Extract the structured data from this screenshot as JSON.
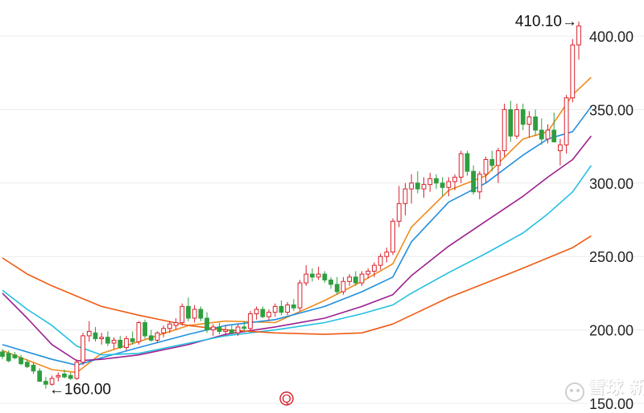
{
  "chart_data": {
    "type": "candlestick",
    "y_axis": {
      "min": 150,
      "max": 410,
      "ticks": [
        "400.00",
        "350.00",
        "300.00",
        "250.00",
        "200.00",
        "150.00"
      ],
      "position": "right"
    },
    "grid": true,
    "colors": {
      "up": "#d9202a",
      "down": "#2e9e3f",
      "ma_short": "#f08a1c",
      "ma_mid": "#1f8fe0",
      "ma_long": "#9c1f8f",
      "ma_xlong": "#22c0e0",
      "ma_xxlong": "#f05a14"
    },
    "candles": [
      {
        "o": 185,
        "h": 187,
        "l": 180,
        "c": 182
      },
      {
        "o": 184,
        "h": 186,
        "l": 178,
        "c": 179
      },
      {
        "o": 183,
        "h": 185,
        "l": 180,
        "c": 181
      },
      {
        "o": 181,
        "h": 183,
        "l": 176,
        "c": 177
      },
      {
        "o": 178,
        "h": 180,
        "l": 174,
        "c": 175
      },
      {
        "o": 176,
        "h": 178,
        "l": 170,
        "c": 172
      },
      {
        "o": 172,
        "h": 174,
        "l": 166,
        "c": 165
      },
      {
        "o": 165,
        "h": 168,
        "l": 160,
        "c": 163
      },
      {
        "o": 163,
        "h": 169,
        "l": 162,
        "c": 167
      },
      {
        "o": 168,
        "h": 171,
        "l": 165,
        "c": 169
      },
      {
        "o": 170,
        "h": 173,
        "l": 167,
        "c": 168
      },
      {
        "o": 169,
        "h": 171,
        "l": 166,
        "c": 167
      },
      {
        "o": 167,
        "h": 180,
        "l": 166,
        "c": 178
      },
      {
        "o": 178,
        "h": 198,
        "l": 176,
        "c": 196
      },
      {
        "o": 196,
        "h": 206,
        "l": 192,
        "c": 199
      },
      {
        "o": 198,
        "h": 202,
        "l": 192,
        "c": 194
      },
      {
        "o": 194,
        "h": 198,
        "l": 190,
        "c": 195
      },
      {
        "o": 195,
        "h": 199,
        "l": 189,
        "c": 191
      },
      {
        "o": 191,
        "h": 195,
        "l": 187,
        "c": 193
      },
      {
        "o": 193,
        "h": 196,
        "l": 187,
        "c": 188
      },
      {
        "o": 188,
        "h": 196,
        "l": 186,
        "c": 194
      },
      {
        "o": 194,
        "h": 199,
        "l": 190,
        "c": 192
      },
      {
        "o": 192,
        "h": 206,
        "l": 190,
        "c": 205
      },
      {
        "o": 205,
        "h": 207,
        "l": 194,
        "c": 196
      },
      {
        "o": 196,
        "h": 200,
        "l": 192,
        "c": 193
      },
      {
        "o": 193,
        "h": 199,
        "l": 191,
        "c": 198
      },
      {
        "o": 198,
        "h": 203,
        "l": 195,
        "c": 201
      },
      {
        "o": 201,
        "h": 206,
        "l": 198,
        "c": 204
      },
      {
        "o": 203,
        "h": 208,
        "l": 200,
        "c": 205
      },
      {
        "o": 205,
        "h": 218,
        "l": 203,
        "c": 216
      },
      {
        "o": 216,
        "h": 222,
        "l": 206,
        "c": 208
      },
      {
        "o": 208,
        "h": 217,
        "l": 205,
        "c": 214
      },
      {
        "o": 214,
        "h": 216,
        "l": 206,
        "c": 208
      },
      {
        "o": 208,
        "h": 212,
        "l": 198,
        "c": 200
      },
      {
        "o": 200,
        "h": 204,
        "l": 196,
        "c": 202
      },
      {
        "o": 202,
        "h": 205,
        "l": 197,
        "c": 199
      },
      {
        "o": 199,
        "h": 203,
        "l": 196,
        "c": 200
      },
      {
        "o": 200,
        "h": 203,
        "l": 197,
        "c": 198
      },
      {
        "o": 198,
        "h": 204,
        "l": 196,
        "c": 202
      },
      {
        "o": 202,
        "h": 206,
        "l": 199,
        "c": 201
      },
      {
        "o": 201,
        "h": 213,
        "l": 199,
        "c": 211
      },
      {
        "o": 211,
        "h": 216,
        "l": 207,
        "c": 214
      },
      {
        "o": 214,
        "h": 216,
        "l": 208,
        "c": 209
      },
      {
        "o": 209,
        "h": 214,
        "l": 206,
        "c": 212
      },
      {
        "o": 212,
        "h": 218,
        "l": 209,
        "c": 216
      },
      {
        "o": 216,
        "h": 220,
        "l": 210,
        "c": 212
      },
      {
        "o": 212,
        "h": 219,
        "l": 210,
        "c": 217
      },
      {
        "o": 217,
        "h": 221,
        "l": 213,
        "c": 215
      },
      {
        "o": 215,
        "h": 234,
        "l": 213,
        "c": 232
      },
      {
        "o": 232,
        "h": 244,
        "l": 230,
        "c": 238
      },
      {
        "o": 238,
        "h": 242,
        "l": 233,
        "c": 236
      },
      {
        "o": 236,
        "h": 243,
        "l": 234,
        "c": 238
      },
      {
        "o": 238,
        "h": 240,
        "l": 232,
        "c": 234
      },
      {
        "o": 234,
        "h": 236,
        "l": 228,
        "c": 231
      },
      {
        "o": 231,
        "h": 236,
        "l": 224,
        "c": 226
      },
      {
        "o": 226,
        "h": 236,
        "l": 224,
        "c": 233
      },
      {
        "o": 233,
        "h": 238,
        "l": 230,
        "c": 236
      },
      {
        "o": 236,
        "h": 240,
        "l": 230,
        "c": 232
      },
      {
        "o": 232,
        "h": 240,
        "l": 230,
        "c": 238
      },
      {
        "o": 238,
        "h": 242,
        "l": 235,
        "c": 240
      },
      {
        "o": 240,
        "h": 246,
        "l": 236,
        "c": 244
      },
      {
        "o": 244,
        "h": 252,
        "l": 241,
        "c": 250
      },
      {
        "o": 250,
        "h": 256,
        "l": 246,
        "c": 253
      },
      {
        "o": 253,
        "h": 276,
        "l": 251,
        "c": 274
      },
      {
        "o": 274,
        "h": 298,
        "l": 270,
        "c": 286
      },
      {
        "o": 286,
        "h": 300,
        "l": 278,
        "c": 296
      },
      {
        "o": 296,
        "h": 306,
        "l": 286,
        "c": 300
      },
      {
        "o": 300,
        "h": 308,
        "l": 293,
        "c": 296
      },
      {
        "o": 296,
        "h": 304,
        "l": 290,
        "c": 299
      },
      {
        "o": 299,
        "h": 307,
        "l": 294,
        "c": 303
      },
      {
        "o": 303,
        "h": 306,
        "l": 296,
        "c": 300
      },
      {
        "o": 300,
        "h": 304,
        "l": 291,
        "c": 297
      },
      {
        "o": 297,
        "h": 304,
        "l": 291,
        "c": 301
      },
      {
        "o": 301,
        "h": 306,
        "l": 295,
        "c": 304
      },
      {
        "o": 304,
        "h": 322,
        "l": 300,
        "c": 320
      },
      {
        "o": 320,
        "h": 322,
        "l": 305,
        "c": 308
      },
      {
        "o": 308,
        "h": 312,
        "l": 292,
        "c": 294
      },
      {
        "o": 294,
        "h": 308,
        "l": 289,
        "c": 306
      },
      {
        "o": 306,
        "h": 318,
        "l": 300,
        "c": 316
      },
      {
        "o": 316,
        "h": 322,
        "l": 308,
        "c": 312
      },
      {
        "o": 312,
        "h": 324,
        "l": 300,
        "c": 322
      },
      {
        "o": 322,
        "h": 354,
        "l": 318,
        "c": 350
      },
      {
        "o": 350,
        "h": 356,
        "l": 328,
        "c": 332
      },
      {
        "o": 332,
        "h": 354,
        "l": 330,
        "c": 350
      },
      {
        "o": 350,
        "h": 354,
        "l": 336,
        "c": 340
      },
      {
        "o": 340,
        "h": 349,
        "l": 331,
        "c": 345
      },
      {
        "o": 345,
        "h": 350,
        "l": 332,
        "c": 336
      },
      {
        "o": 336,
        "h": 344,
        "l": 326,
        "c": 330
      },
      {
        "o": 330,
        "h": 340,
        "l": 327,
        "c": 336
      },
      {
        "o": 336,
        "h": 348,
        "l": 330,
        "c": 328
      },
      {
        "o": 322,
        "h": 330,
        "l": 312,
        "c": 326
      },
      {
        "o": 326,
        "h": 360,
        "l": 320,
        "c": 358
      },
      {
        "o": 358,
        "h": 398,
        "l": 355,
        "c": 394
      },
      {
        "o": 394,
        "h": 410,
        "l": 384,
        "c": 407
      }
    ],
    "moving_averages": [
      {
        "color": "#f08a1c",
        "values": [
          [
            0,
            186
          ],
          [
            8,
            173
          ],
          [
            12,
            171
          ],
          [
            16,
            184
          ],
          [
            22,
            192
          ],
          [
            30,
            203
          ],
          [
            36,
            206
          ],
          [
            44,
            205
          ],
          [
            52,
            220
          ],
          [
            58,
            233
          ],
          [
            63,
            245
          ],
          [
            66,
            270
          ],
          [
            72,
            295
          ],
          [
            78,
            305
          ],
          [
            84,
            330
          ],
          [
            88,
            335
          ],
          [
            92,
            360
          ],
          [
            95,
            372
          ]
        ]
      },
      {
        "color": "#1f8fe0",
        "values": [
          [
            0,
            190
          ],
          [
            8,
            180
          ],
          [
            12,
            176
          ],
          [
            16,
            181
          ],
          [
            22,
            188
          ],
          [
            30,
            197
          ],
          [
            36,
            203
          ],
          [
            44,
            207
          ],
          [
            52,
            216
          ],
          [
            58,
            226
          ],
          [
            63,
            236
          ],
          [
            66,
            260
          ],
          [
            72,
            287
          ],
          [
            78,
            300
          ],
          [
            84,
            319
          ],
          [
            88,
            330
          ],
          [
            92,
            335
          ],
          [
            95,
            352
          ]
        ]
      },
      {
        "color": "#9c1f8f",
        "values": [
          [
            0,
            225
          ],
          [
            4,
            208
          ],
          [
            8,
            190
          ],
          [
            12,
            179
          ],
          [
            16,
            180
          ],
          [
            22,
            183
          ],
          [
            30,
            190
          ],
          [
            36,
            197
          ],
          [
            44,
            202
          ],
          [
            52,
            208
          ],
          [
            58,
            216
          ],
          [
            63,
            224
          ],
          [
            66,
            237
          ],
          [
            72,
            257
          ],
          [
            78,
            274
          ],
          [
            84,
            291
          ],
          [
            88,
            304
          ],
          [
            92,
            316
          ],
          [
            95,
            332
          ]
        ]
      },
      {
        "color": "#22c0e0",
        "values": [
          [
            0,
            227
          ],
          [
            4,
            214
          ],
          [
            8,
            203
          ],
          [
            12,
            189
          ],
          [
            16,
            183
          ],
          [
            22,
            184
          ],
          [
            30,
            191
          ],
          [
            36,
            196
          ],
          [
            44,
            200
          ],
          [
            52,
            205
          ],
          [
            58,
            211
          ],
          [
            63,
            217
          ],
          [
            66,
            225
          ],
          [
            72,
            239
          ],
          [
            78,
            252
          ],
          [
            84,
            266
          ],
          [
            88,
            279
          ],
          [
            92,
            294
          ],
          [
            95,
            312
          ]
        ]
      },
      {
        "color": "#f05a14",
        "values": [
          [
            0,
            249
          ],
          [
            4,
            238
          ],
          [
            8,
            230
          ],
          [
            12,
            223
          ],
          [
            16,
            216
          ],
          [
            22,
            210
          ],
          [
            30,
            203
          ],
          [
            36,
            200
          ],
          [
            44,
            198
          ],
          [
            52,
            197
          ],
          [
            58,
            198
          ],
          [
            63,
            204
          ],
          [
            66,
            210
          ],
          [
            72,
            222
          ],
          [
            78,
            232
          ],
          [
            84,
            242
          ],
          [
            88,
            249
          ],
          [
            92,
            256
          ],
          [
            95,
            264
          ]
        ]
      }
    ],
    "annotations": [
      {
        "text": "410.10→"
      },
      {
        "text": "←160.00"
      }
    ]
  },
  "watermark": {
    "text": "雪球 新股",
    "marker": "Q"
  }
}
